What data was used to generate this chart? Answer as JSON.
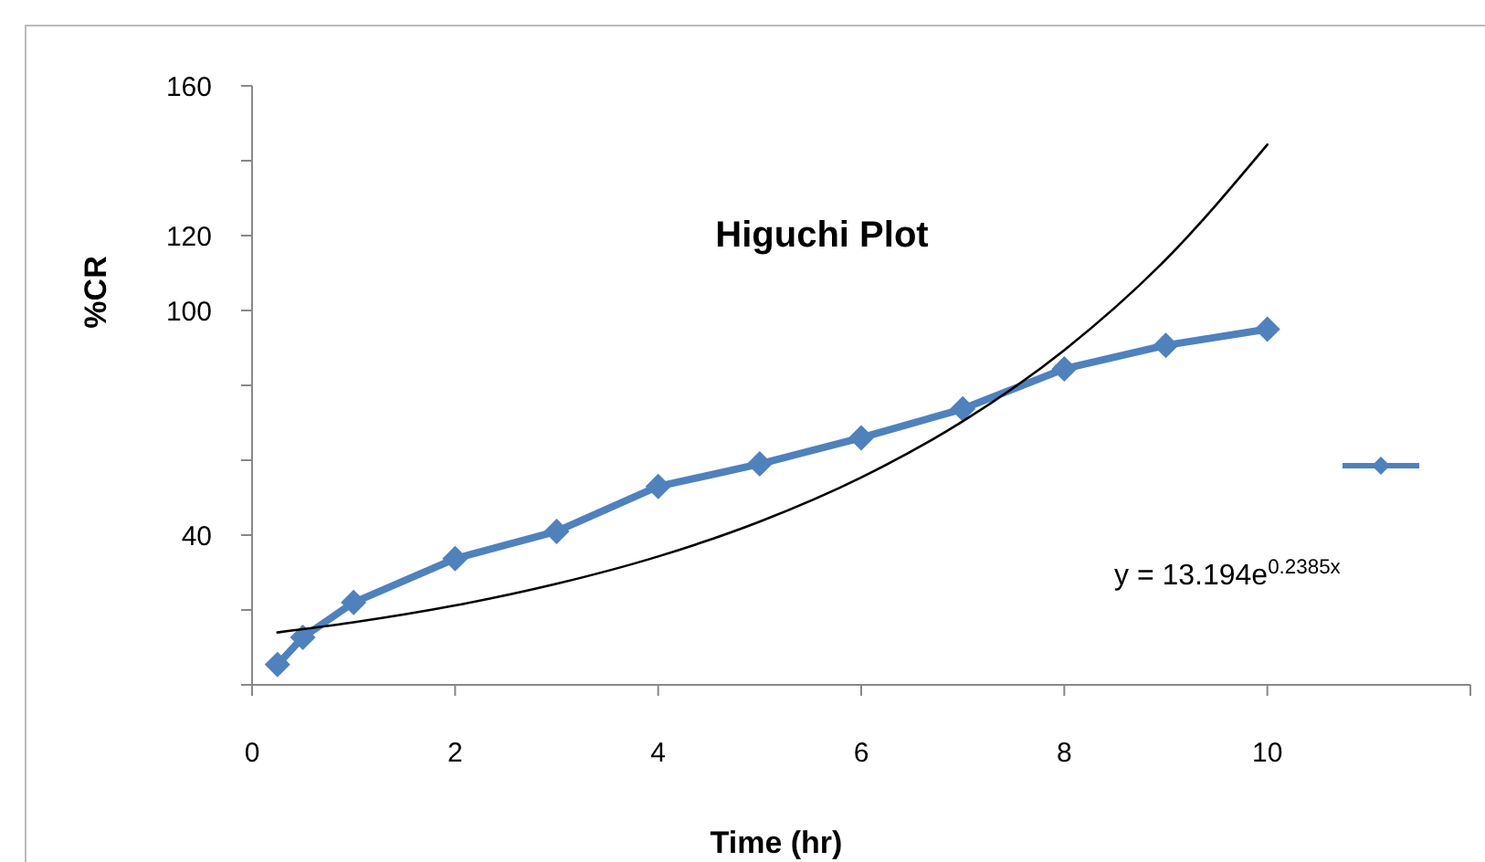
{
  "chart_data": {
    "type": "line",
    "title": "Higuchi Plot",
    "xlabel": "Time (hr)",
    "ylabel": "%CR",
    "x": [
      0.25,
      0.5,
      1,
      2,
      3,
      4,
      5,
      6,
      7,
      8,
      9,
      10
    ],
    "series": [
      {
        "color": "#4f81bd",
        "values": [
          5.4,
          12.7,
          22,
          33.7,
          41,
          53,
          59,
          66,
          73.7,
          84.4,
          90.7,
          95
        ]
      },
      {
        "type": "line",
        "color": "#000000",
        "marker": "none",
        "x": [
          0.25,
          1,
          2,
          3,
          4,
          5,
          6,
          7,
          8,
          9,
          10
        ],
        "values": [
          14,
          16.7,
          21.2,
          27,
          34.3,
          43.6,
          55.4,
          70.4,
          89.4,
          113.6,
          144.3
        ]
      }
    ],
    "marker": "diamond",
    "grid": false,
    "xlim": [
      0,
      12
    ],
    "xticks": [
      0,
      2,
      4,
      6,
      8,
      10,
      {
        "value": 12,
        "label": null
      }
    ],
    "ylim": [
      0,
      160
    ],
    "yticks": [
      {
        "value": 0,
        "label": null
      },
      {
        "value": 20,
        "label": null
      },
      40,
      {
        "value": 60,
        "label": null
      },
      {
        "value": 80,
        "label": null
      },
      100,
      120,
      {
        "value": 140,
        "label": null
      },
      160
    ],
    "annotations": [
      "y = 13.194e$^{0.2385x}$"
    ]
  }
}
